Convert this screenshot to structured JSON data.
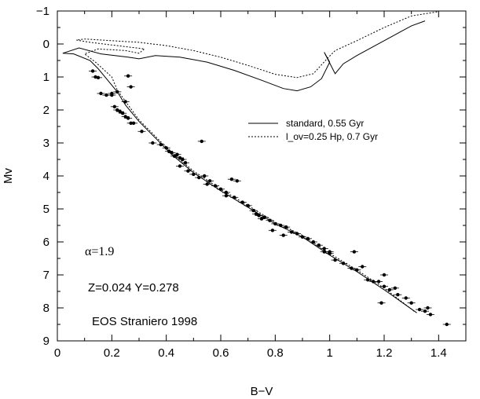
{
  "chart_data": {
    "type": "scatter",
    "xlabel": "B−V",
    "ylabel": "Mv",
    "xlim": [
      0,
      1.5
    ],
    "ylim": [
      -1,
      9
    ],
    "y_inverted": true,
    "x_ticks": [
      "0",
      "0.2",
      "0.4",
      "0.6",
      "0.8",
      "1",
      "1.2",
      "1.4"
    ],
    "y_ticks": [
      "−1",
      "0",
      "1",
      "2",
      "3",
      "4",
      "5",
      "6",
      "7",
      "8",
      "9"
    ],
    "annotations": {
      "alpha": "α=1.9",
      "composition": "Z=0.024 Y=0.278",
      "eos": "EOS Straniero 1998"
    },
    "legend": {
      "position": "upper-right",
      "entries": [
        {
          "label": "standard, 0.55 Gyr",
          "style": "solid"
        },
        {
          "label": "l_ov=0.25 Hp, 0.7 Gyr",
          "style": "dotted"
        }
      ]
    },
    "series": [
      {
        "name": "standard, 0.55 Gyr",
        "kind": "line",
        "style": "solid",
        "points": [
          [
            1.32,
            8.15
          ],
          [
            1.2,
            7.45
          ],
          [
            1.1,
            6.9
          ],
          [
            1.0,
            6.4
          ],
          [
            0.9,
            5.85
          ],
          [
            0.8,
            5.45
          ],
          [
            0.7,
            4.95
          ],
          [
            0.6,
            4.45
          ],
          [
            0.5,
            3.9
          ],
          [
            0.42,
            3.35
          ],
          [
            0.36,
            2.85
          ],
          [
            0.3,
            2.35
          ],
          [
            0.25,
            1.85
          ],
          [
            0.22,
            1.45
          ],
          [
            0.18,
            1.05
          ],
          [
            0.15,
            0.75
          ],
          [
            0.12,
            0.5
          ],
          [
            0.06,
            0.3
          ],
          [
            0.02,
            0.28
          ],
          [
            0.08,
            0.12
          ],
          [
            0.16,
            0.3
          ],
          [
            0.26,
            0.4
          ],
          [
            0.3,
            0.45
          ],
          [
            0.36,
            0.35
          ],
          [
            0.45,
            0.4
          ],
          [
            0.55,
            0.55
          ],
          [
            0.65,
            0.8
          ],
          [
            0.75,
            1.1
          ],
          [
            0.83,
            1.35
          ],
          [
            0.88,
            1.42
          ],
          [
            0.93,
            1.3
          ],
          [
            0.97,
            1.05
          ],
          [
            1.0,
            0.55
          ],
          [
            0.98,
            0.25
          ],
          [
            1.02,
            0.9
          ],
          [
            1.05,
            0.6
          ],
          [
            1.1,
            0.35
          ],
          [
            1.2,
            -0.1
          ],
          [
            1.3,
            -0.55
          ],
          [
            1.35,
            -0.7
          ]
        ]
      },
      {
        "name": "l_ov=0.25 Hp, 0.7 Gyr",
        "kind": "line",
        "style": "dotted",
        "points": [
          [
            1.31,
            8.1
          ],
          [
            1.2,
            7.4
          ],
          [
            1.1,
            6.85
          ],
          [
            1.0,
            6.35
          ],
          [
            0.9,
            5.8
          ],
          [
            0.8,
            5.4
          ],
          [
            0.7,
            4.9
          ],
          [
            0.6,
            4.4
          ],
          [
            0.5,
            3.85
          ],
          [
            0.42,
            3.3
          ],
          [
            0.36,
            2.8
          ],
          [
            0.3,
            2.3
          ],
          [
            0.26,
            1.85
          ],
          [
            0.22,
            1.4
          ],
          [
            0.2,
            1.0
          ],
          [
            0.14,
            0.55
          ],
          [
            0.1,
            0.3
          ],
          [
            0.15,
            0.15
          ],
          [
            0.25,
            0.2
          ],
          [
            0.3,
            0.28
          ],
          [
            0.32,
            0.15
          ],
          [
            0.12,
            -0.05
          ],
          [
            0.07,
            -0.12
          ],
          [
            0.1,
            -0.15
          ],
          [
            0.2,
            -0.1
          ],
          [
            0.3,
            -0.05
          ],
          [
            0.4,
            0.05
          ],
          [
            0.5,
            0.2
          ],
          [
            0.6,
            0.4
          ],
          [
            0.7,
            0.65
          ],
          [
            0.8,
            0.92
          ],
          [
            0.88,
            1.02
          ],
          [
            0.94,
            0.9
          ],
          [
            0.99,
            0.45
          ],
          [
            1.02,
            0.2
          ],
          [
            1.1,
            -0.1
          ],
          [
            1.2,
            -0.5
          ],
          [
            1.3,
            -0.85
          ],
          [
            1.4,
            -0.98
          ]
        ]
      },
      {
        "name": "",
        "kind": "points",
        "points": [
          [
            0.13,
            0.82
          ],
          [
            0.14,
            1.0
          ],
          [
            0.15,
            1.02
          ],
          [
            0.16,
            1.5
          ],
          [
            0.18,
            1.55
          ],
          [
            0.2,
            1.55
          ],
          [
            0.21,
            1.9
          ],
          [
            0.22,
            2.0
          ],
          [
            0.23,
            2.05
          ],
          [
            0.24,
            2.1
          ],
          [
            0.25,
            2.2
          ],
          [
            0.26,
            2.25
          ],
          [
            0.27,
            2.4
          ],
          [
            0.28,
            2.4
          ],
          [
            0.26,
            0.97
          ],
          [
            0.27,
            1.3
          ],
          [
            0.22,
            1.45
          ],
          [
            0.2,
            1.5
          ],
          [
            0.25,
            1.75
          ],
          [
            0.31,
            2.65
          ],
          [
            0.35,
            3.0
          ],
          [
            0.38,
            3.05
          ],
          [
            0.4,
            3.15
          ],
          [
            0.41,
            3.25
          ],
          [
            0.42,
            3.3
          ],
          [
            0.43,
            3.4
          ],
          [
            0.44,
            3.35
          ],
          [
            0.45,
            3.45
          ],
          [
            0.46,
            3.5
          ],
          [
            0.47,
            3.6
          ],
          [
            0.45,
            3.7
          ],
          [
            0.48,
            3.85
          ],
          [
            0.5,
            3.95
          ],
          [
            0.52,
            4.05
          ],
          [
            0.55,
            4.25
          ],
          [
            0.53,
            2.95
          ],
          [
            0.54,
            4.0
          ],
          [
            0.56,
            4.15
          ],
          [
            0.58,
            4.3
          ],
          [
            0.6,
            4.4
          ],
          [
            0.62,
            4.5
          ],
          [
            0.64,
            4.1
          ],
          [
            0.66,
            4.15
          ],
          [
            0.62,
            4.6
          ],
          [
            0.65,
            4.65
          ],
          [
            0.68,
            4.8
          ],
          [
            0.7,
            4.9
          ],
          [
            0.72,
            5.05
          ],
          [
            0.74,
            5.2
          ],
          [
            0.76,
            5.25
          ],
          [
            0.73,
            5.15
          ],
          [
            0.75,
            5.3
          ],
          [
            0.78,
            5.35
          ],
          [
            0.8,
            5.45
          ],
          [
            0.82,
            5.5
          ],
          [
            0.84,
            5.55
          ],
          [
            0.86,
            5.7
          ],
          [
            0.88,
            5.75
          ],
          [
            0.9,
            5.85
          ],
          [
            0.92,
            5.9
          ],
          [
            0.94,
            6.0
          ],
          [
            0.96,
            6.1
          ],
          [
            0.98,
            6.2
          ],
          [
            1.0,
            6.35
          ],
          [
            1.02,
            6.55
          ],
          [
            1.05,
            6.65
          ],
          [
            1.08,
            6.8
          ],
          [
            1.1,
            6.85
          ],
          [
            1.12,
            6.75
          ],
          [
            1.14,
            7.15
          ],
          [
            1.16,
            7.2
          ],
          [
            1.18,
            7.2
          ],
          [
            1.19,
            7.85
          ],
          [
            1.2,
            7.35
          ],
          [
            1.22,
            7.45
          ],
          [
            1.25,
            7.6
          ],
          [
            1.28,
            7.7
          ],
          [
            1.3,
            7.85
          ],
          [
            1.33,
            8.05
          ],
          [
            1.35,
            8.1
          ],
          [
            1.37,
            8.2
          ],
          [
            1.43,
            8.5
          ],
          [
            1.0,
            6.3
          ],
          [
            0.98,
            6.3
          ],
          [
            1.09,
            6.3
          ],
          [
            1.2,
            7.0
          ],
          [
            1.24,
            7.4
          ],
          [
            1.36,
            8.0
          ],
          [
            0.79,
            5.65
          ],
          [
            0.83,
            5.8
          ]
        ]
      }
    ]
  }
}
